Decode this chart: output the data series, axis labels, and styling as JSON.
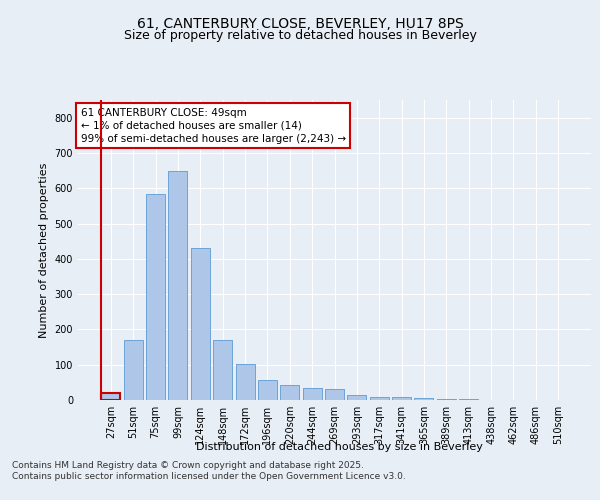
{
  "title_line1": "61, CANTERBURY CLOSE, BEVERLEY, HU17 8PS",
  "title_line2": "Size of property relative to detached houses in Beverley",
  "xlabel": "Distribution of detached houses by size in Beverley",
  "ylabel": "Number of detached properties",
  "categories": [
    "27sqm",
    "51sqm",
    "75sqm",
    "99sqm",
    "124sqm",
    "148sqm",
    "172sqm",
    "196sqm",
    "220sqm",
    "244sqm",
    "269sqm",
    "293sqm",
    "317sqm",
    "341sqm",
    "365sqm",
    "389sqm",
    "413sqm",
    "438sqm",
    "462sqm",
    "486sqm",
    "510sqm"
  ],
  "values": [
    20,
    170,
    585,
    648,
    430,
    170,
    102,
    57,
    42,
    33,
    30,
    14,
    9,
    9,
    5,
    3,
    2,
    1,
    0,
    0,
    1
  ],
  "bar_color": "#aec6e8",
  "bar_edge_color": "#5b9bd5",
  "highlight_bar_index": 0,
  "highlight_color_edge": "#cc0000",
  "annotation_box_text": "61 CANTERBURY CLOSE: 49sqm\n← 1% of detached houses are smaller (14)\n99% of semi-detached houses are larger (2,243) →",
  "annotation_box_edge": "#cc0000",
  "ylim": [
    0,
    850
  ],
  "yticks": [
    0,
    100,
    200,
    300,
    400,
    500,
    600,
    700,
    800
  ],
  "bg_color": "#e8eef5",
  "plot_bg_color": "#e8eef5",
  "grid_color": "#ffffff",
  "footer_line1": "Contains HM Land Registry data © Crown copyright and database right 2025.",
  "footer_line2": "Contains public sector information licensed under the Open Government Licence v3.0.",
  "title_fontsize": 10,
  "subtitle_fontsize": 9,
  "tick_fontsize": 7,
  "ylabel_fontsize": 8,
  "xlabel_fontsize": 8,
  "annotation_fontsize": 7.5,
  "footer_fontsize": 6.5
}
